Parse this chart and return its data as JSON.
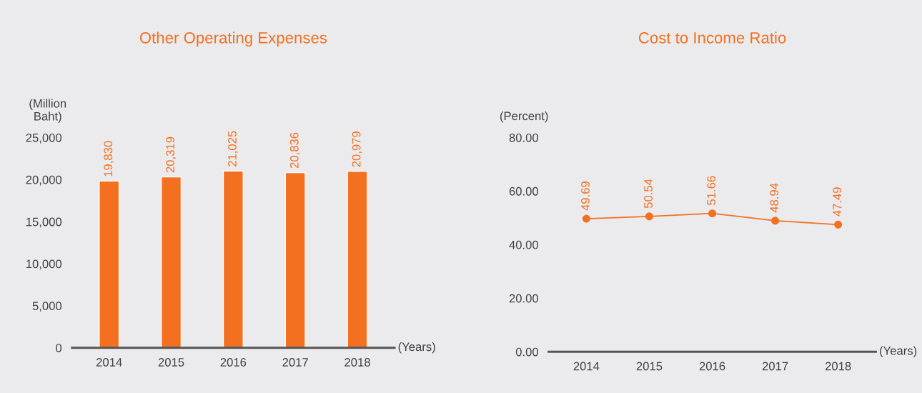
{
  "chart_data": [
    {
      "type": "bar",
      "title": "Other Operating Expenses",
      "ylabel": "(Million\nBaht)",
      "xlabel": "(Years)",
      "categories": [
        "2014",
        "2015",
        "2016",
        "2017",
        "2018"
      ],
      "series": [
        {
          "color": "#f37021",
          "values": [
            19830,
            20319,
            21025,
            20836,
            20979
          ]
        }
      ],
      "value_labels": [
        "19,830",
        "20,319",
        "21,025",
        "20,836",
        "20,979"
      ],
      "ylim": [
        0,
        25000
      ],
      "yticks": [
        {
          "value": 0,
          "label": "0"
        },
        {
          "value": 5000,
          "label": "5,000"
        },
        {
          "value": 10000,
          "label": "10,000"
        },
        {
          "value": 15000,
          "label": "15,000"
        },
        {
          "value": 20000,
          "label": "20,000"
        },
        {
          "value": 25000,
          "label": "25,000"
        }
      ],
      "grid": false
    },
    {
      "type": "line",
      "title": "Cost to Income Ratio",
      "ylabel": "(Percent)",
      "xlabel": "(Years)",
      "categories": [
        "2014",
        "2015",
        "2016",
        "2017",
        "2018"
      ],
      "series": [
        {
          "color": "#f37021",
          "values": [
            49.69,
            50.54,
            51.66,
            48.94,
            47.49
          ]
        }
      ],
      "data_labels": true,
      "marker": "circle",
      "line_style": "solid",
      "ylim": [
        0,
        80
      ],
      "yticks": [
        {
          "value": 0,
          "label": "0.00"
        },
        {
          "value": 20,
          "label": "20.00"
        },
        {
          "value": 40,
          "label": "40.00"
        },
        {
          "value": 60,
          "label": "60.00"
        },
        {
          "value": 80,
          "label": "80.00"
        }
      ],
      "grid": false
    }
  ]
}
